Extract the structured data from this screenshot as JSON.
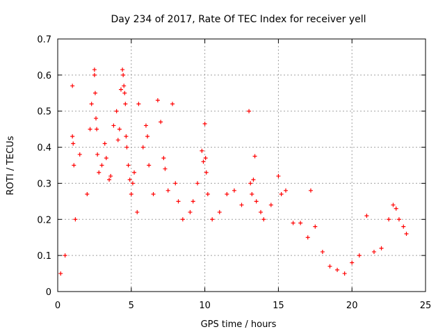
{
  "chart_data": {
    "type": "scatter",
    "title": "Day 234 of 2017, Rate Of TEC Index for receiver yell",
    "xlabel": "GPS time / hours",
    "ylabel": "ROTI / TECUs",
    "xlim": [
      0,
      25
    ],
    "ylim": [
      0,
      0.7
    ],
    "xticks": [
      0,
      5,
      10,
      15,
      20,
      25
    ],
    "xtick_labels": [
      "0",
      "5",
      "10",
      "15",
      "20",
      "25"
    ],
    "yticks": [
      0,
      0.1,
      0.2,
      0.3,
      0.4,
      0.5,
      0.6,
      0.7
    ],
    "ytick_labels": [
      "0",
      "0.1",
      "0.2",
      "0.3",
      "0.4",
      "0.5",
      "0.6",
      "0.7"
    ],
    "grid": true,
    "marker": "+",
    "color": "#ff0000",
    "series": [
      {
        "name": "ROTI",
        "x": [
          0.2,
          0.5,
          1.0,
          1.0,
          1.05,
          1.1,
          1.2,
          1.5,
          2.0,
          2.2,
          2.3,
          2.5,
          2.5,
          2.55,
          2.6,
          2.65,
          2.7,
          2.8,
          3.0,
          3.2,
          3.3,
          3.5,
          3.6,
          3.8,
          4.0,
          4.1,
          4.2,
          4.3,
          4.4,
          4.45,
          4.5,
          4.55,
          4.6,
          4.65,
          4.7,
          4.8,
          4.9,
          5.0,
          5.1,
          5.2,
          5.4,
          5.5,
          5.8,
          6.0,
          6.1,
          6.2,
          6.5,
          6.8,
          7.0,
          7.2,
          7.3,
          7.5,
          7.8,
          8.0,
          8.2,
          8.5,
          9.0,
          9.2,
          9.5,
          9.8,
          9.9,
          10.0,
          10.05,
          10.1,
          10.2,
          10.5,
          11.0,
          11.5,
          12.0,
          12.5,
          13.0,
          13.1,
          13.2,
          13.3,
          13.4,
          13.5,
          13.8,
          14.0,
          14.5,
          15.0,
          15.2,
          15.5,
          16.0,
          16.5,
          17.0,
          17.2,
          17.5,
          18.0,
          18.5,
          19.0,
          19.5,
          20.0,
          20.5,
          21.0,
          21.5,
          22.0,
          22.5,
          22.8,
          23.0,
          23.2,
          23.5,
          23.7
        ],
        "y": [
          0.05,
          0.1,
          0.57,
          0.43,
          0.41,
          0.35,
          0.2,
          0.38,
          0.27,
          0.45,
          0.52,
          0.6,
          0.615,
          0.55,
          0.48,
          0.45,
          0.38,
          0.33,
          0.35,
          0.41,
          0.37,
          0.31,
          0.32,
          0.46,
          0.5,
          0.42,
          0.45,
          0.56,
          0.615,
          0.6,
          0.57,
          0.55,
          0.52,
          0.43,
          0.4,
          0.35,
          0.31,
          0.27,
          0.3,
          0.33,
          0.22,
          0.52,
          0.4,
          0.46,
          0.43,
          0.35,
          0.27,
          0.53,
          0.47,
          0.37,
          0.34,
          0.28,
          0.52,
          0.3,
          0.25,
          0.2,
          0.22,
          0.25,
          0.3,
          0.39,
          0.36,
          0.465,
          0.37,
          0.33,
          0.27,
          0.2,
          0.22,
          0.27,
          0.28,
          0.24,
          0.5,
          0.3,
          0.27,
          0.31,
          0.375,
          0.25,
          0.22,
          0.2,
          0.24,
          0.32,
          0.27,
          0.28,
          0.19,
          0.19,
          0.15,
          0.28,
          0.18,
          0.11,
          0.07,
          0.06,
          0.05,
          0.08,
          0.1,
          0.21,
          0.11,
          0.12,
          0.2,
          0.24,
          0.23,
          0.2,
          0.18,
          0.16
        ]
      }
    ]
  }
}
